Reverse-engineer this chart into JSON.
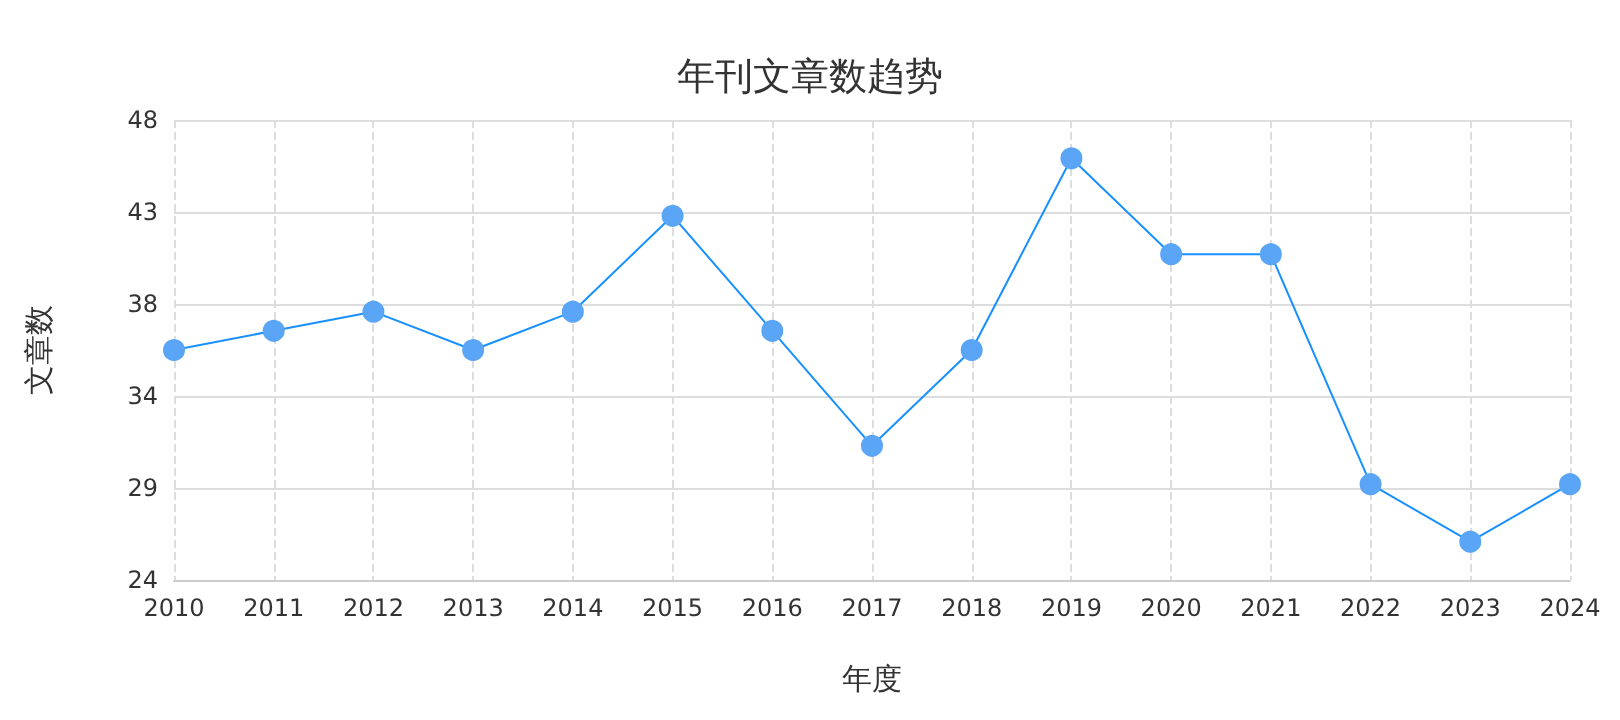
{
  "chart_data": {
    "type": "line",
    "title": "年刊文章数趋势",
    "xlabel": "年度",
    "ylabel": "文章数",
    "categories": [
      "2010",
      "2011",
      "2012",
      "2013",
      "2014",
      "2015",
      "2016",
      "2017",
      "2018",
      "2019",
      "2020",
      "2021",
      "2022",
      "2023",
      "2024"
    ],
    "series": [
      {
        "color": "#1890ff",
        "values": [
          36,
          37,
          38,
          36,
          38,
          43,
          37,
          31,
          36,
          46,
          41,
          41,
          29,
          26,
          29
        ]
      }
    ],
    "ylim": [
      24,
      48
    ],
    "yticks": [
      24,
      {
        "value": 28.8,
        "label": "29"
      },
      {
        "value": 33.6,
        "label": "34"
      },
      {
        "value": 38.4,
        "label": "38"
      },
      {
        "value": 43.2,
        "label": "43"
      },
      48
    ],
    "grid": true,
    "marker": "circle",
    "line_style": "solid"
  }
}
